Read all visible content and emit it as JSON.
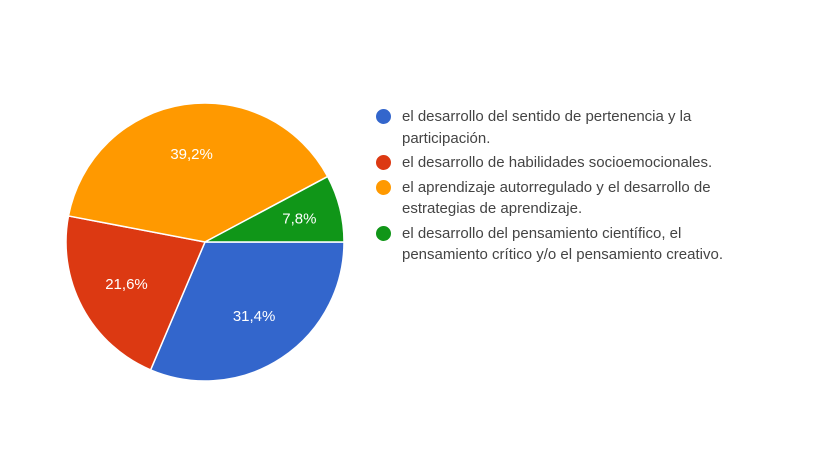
{
  "chart_data": {
    "type": "pie",
    "categories": [
      "el desarrollo del sentido de pertenencia y la participación.",
      "el desarrollo de habilidades socioemocionales.",
      "el aprendizaje autorregulado y el desarrollo de estrategias de aprendizaje.",
      "el desarrollo del pensamiento científico, el pensamiento crítico y/o el pensamiento creativo."
    ],
    "values": [
      31.4,
      21.6,
      39.2,
      7.8
    ],
    "value_labels": [
      "31,4%",
      "21,6%",
      "39,2%",
      "7,8%"
    ],
    "colors": [
      "#3366cc",
      "#dc3912",
      "#ff9900",
      "#109618"
    ],
    "legend_position": "right"
  }
}
